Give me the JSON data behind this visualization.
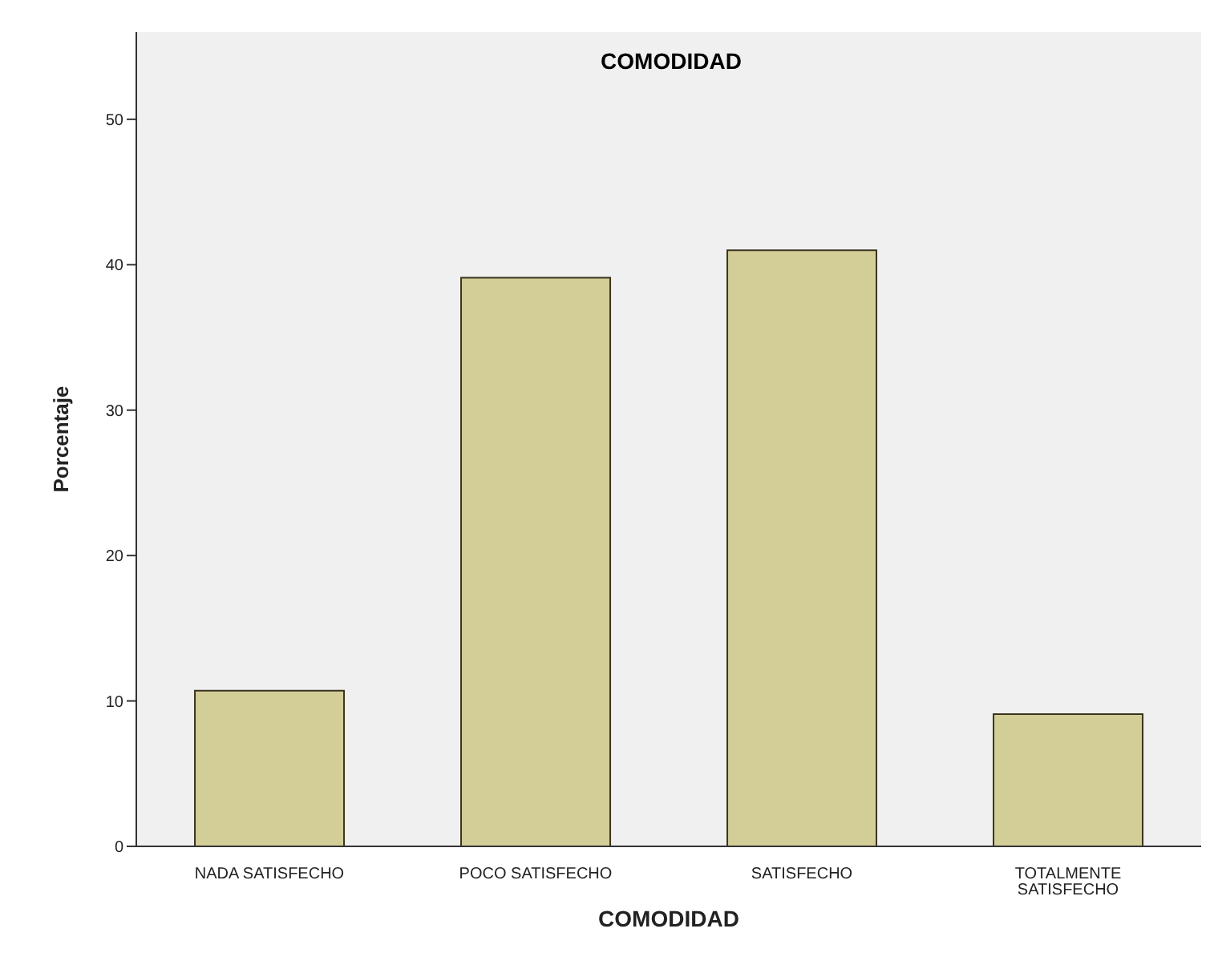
{
  "chart_data": {
    "type": "bar",
    "title": "COMODIDAD",
    "xlabel": "COMODIDAD",
    "ylabel": "Porcentaje",
    "categories": [
      "NADA SATISFECHO",
      "POCO SATISFECHO",
      "SATISFECHO",
      "TOTALMENTE SATISFECHO"
    ],
    "values": [
      10.7,
      39.1,
      41.0,
      9.1
    ],
    "color": "#d3ce97",
    "ylim": [
      0,
      56
    ],
    "yticks": [
      0,
      10,
      20,
      30,
      40,
      50
    ],
    "grid": false
  }
}
